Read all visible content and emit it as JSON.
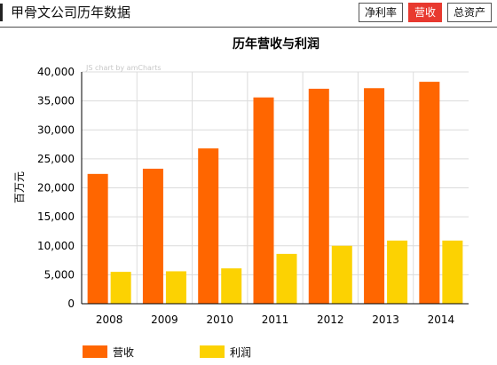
{
  "header": {
    "title": "甲骨文公司历年数据",
    "tabs": [
      {
        "label": "净利率",
        "active": false
      },
      {
        "label": "营收",
        "active": true
      },
      {
        "label": "总资产",
        "active": false
      }
    ]
  },
  "chart_data": {
    "type": "bar",
    "title": "历年营收与利润",
    "ylabel": "百万元",
    "xlabel": "",
    "credit": "JS chart by amCharts",
    "ylim": [
      0,
      40000
    ],
    "yticks": [
      "0",
      "5,000",
      "10,000",
      "15,000",
      "20,000",
      "25,000",
      "30,000",
      "35,000",
      "40,000"
    ],
    "categories": [
      "2008",
      "2009",
      "2010",
      "2011",
      "2012",
      "2013",
      "2014"
    ],
    "series": [
      {
        "name": "营收",
        "color": "#ff6600",
        "values": [
          22400,
          23300,
          26800,
          35600,
          37100,
          37200,
          38300
        ]
      },
      {
        "name": "利润",
        "color": "#fcd202",
        "values": [
          5500,
          5600,
          6100,
          8600,
          10000,
          10900,
          10900
        ]
      }
    ]
  }
}
